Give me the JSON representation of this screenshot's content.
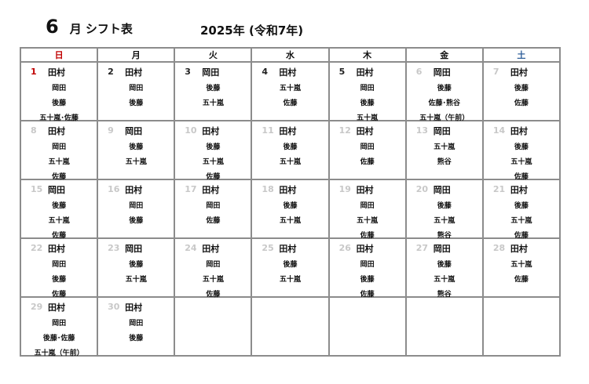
{
  "header": {
    "month": "6",
    "label": "月 シフト表",
    "year": "2025年 (令和7年)"
  },
  "weekdays": [
    "日",
    "月",
    "火",
    "水",
    "木",
    "金",
    "土"
  ],
  "colors": {
    "sunday": "#c00000",
    "saturday": "#2f5f9a",
    "grid": "#8c8c8c"
  },
  "weeks": [
    [
      {
        "d": "1",
        "cur": true,
        "p": [
          "田村",
          "岡田",
          "後藤",
          "五十嵐･佐藤"
        ]
      },
      {
        "d": "2",
        "cur": true,
        "p": [
          "田村",
          "岡田",
          "後藤"
        ]
      },
      {
        "d": "3",
        "cur": true,
        "p": [
          "岡田",
          "後藤",
          "五十嵐"
        ]
      },
      {
        "d": "4",
        "cur": true,
        "p": [
          "田村",
          "五十嵐",
          "佐藤"
        ]
      },
      {
        "d": "5",
        "cur": true,
        "p": [
          "田村",
          "岡田",
          "後藤",
          "五十嵐"
        ]
      },
      {
        "d": "6",
        "p": [
          "岡田",
          "後藤",
          "佐藤･熊谷",
          "五十嵐（午前）"
        ]
      },
      {
        "d": "7",
        "p": [
          "田村",
          "後藤",
          "佐藤"
        ]
      }
    ],
    [
      {
        "d": "8",
        "p": [
          "田村",
          "岡田",
          "五十嵐",
          "佐藤"
        ]
      },
      {
        "d": "9",
        "p": [
          "岡田",
          "後藤",
          "五十嵐"
        ]
      },
      {
        "d": "10",
        "p": [
          "田村",
          "後藤",
          "五十嵐",
          "佐藤"
        ]
      },
      {
        "d": "11",
        "p": [
          "田村",
          "後藤",
          "五十嵐"
        ]
      },
      {
        "d": "12",
        "p": [
          "田村",
          "岡田",
          "佐藤"
        ]
      },
      {
        "d": "13",
        "p": [
          "岡田",
          "五十嵐",
          "熊谷"
        ]
      },
      {
        "d": "14",
        "p": [
          "田村",
          "後藤",
          "五十嵐",
          "佐藤"
        ]
      }
    ],
    [
      {
        "d": "15",
        "p": [
          "岡田",
          "後藤",
          "五十嵐",
          "佐藤"
        ]
      },
      {
        "d": "16",
        "p": [
          "田村",
          "岡田",
          "後藤"
        ]
      },
      {
        "d": "17",
        "p": [
          "田村",
          "岡田",
          "佐藤"
        ]
      },
      {
        "d": "18",
        "p": [
          "田村",
          "後藤",
          "五十嵐"
        ]
      },
      {
        "d": "19",
        "p": [
          "田村",
          "岡田",
          "五十嵐",
          "佐藤"
        ]
      },
      {
        "d": "20",
        "p": [
          "岡田",
          "後藤",
          "五十嵐",
          "熊谷"
        ]
      },
      {
        "d": "21",
        "p": [
          "田村",
          "後藤",
          "五十嵐",
          "佐藤"
        ]
      }
    ],
    [
      {
        "d": "22",
        "p": [
          "田村",
          "岡田",
          "後藤",
          "佐藤"
        ]
      },
      {
        "d": "23",
        "p": [
          "岡田",
          "後藤",
          "五十嵐"
        ]
      },
      {
        "d": "24",
        "p": [
          "田村",
          "岡田",
          "五十嵐",
          "佐藤"
        ]
      },
      {
        "d": "25",
        "p": [
          "田村",
          "後藤",
          "五十嵐"
        ]
      },
      {
        "d": "26",
        "p": [
          "田村",
          "岡田",
          "後藤",
          "佐藤"
        ]
      },
      {
        "d": "27",
        "p": [
          "岡田",
          "後藤",
          "五十嵐",
          "熊谷"
        ]
      },
      {
        "d": "28",
        "p": [
          "田村",
          "五十嵐",
          "佐藤"
        ]
      }
    ],
    [
      {
        "d": "29",
        "p": [
          "田村",
          "岡田",
          "後藤･佐藤",
          "五十嵐（午前）"
        ]
      },
      {
        "d": "30",
        "p": [
          "田村",
          "岡田",
          "後藤"
        ]
      },
      null,
      null,
      null,
      null,
      null
    ]
  ]
}
